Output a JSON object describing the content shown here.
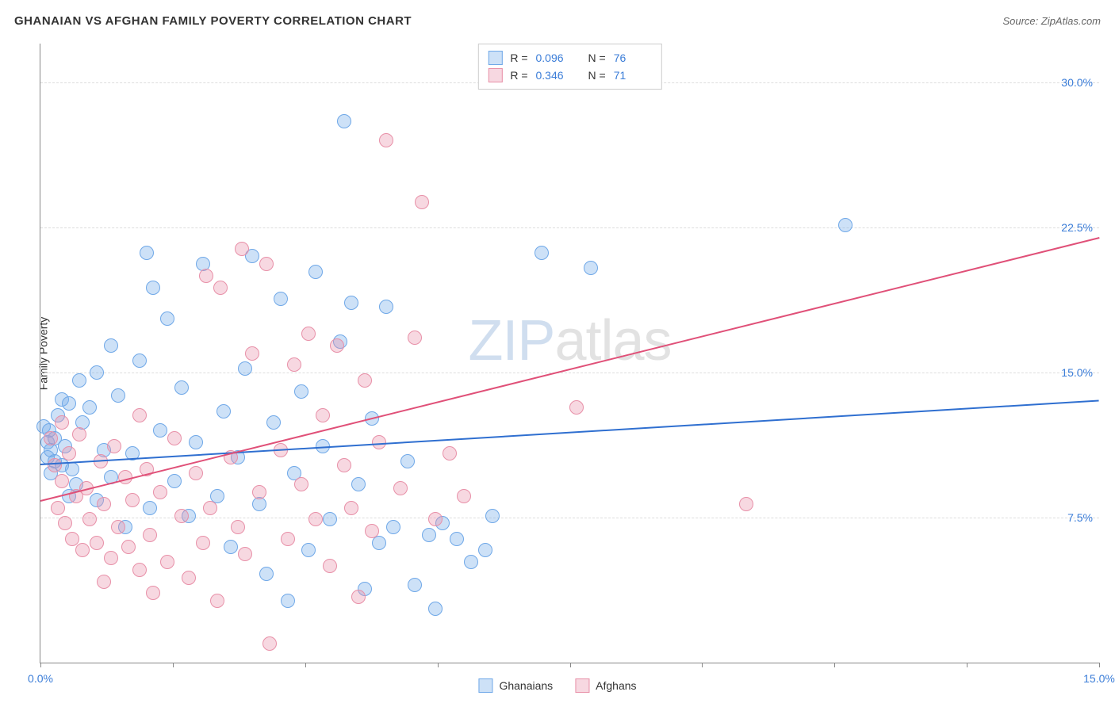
{
  "header": {
    "title": "GHANAIAN VS AFGHAN FAMILY POVERTY CORRELATION CHART",
    "source": "Source: ZipAtlas.com"
  },
  "ylabel": "Family Poverty",
  "watermark": {
    "part1": "ZIP",
    "part2": "atlas"
  },
  "chart": {
    "type": "scatter",
    "background_color": "#ffffff",
    "grid_color": "#dddddd",
    "axis_color": "#888888",
    "label_color": "#3b7dd8",
    "label_fontsize": 14,
    "xlim": [
      0.0,
      15.0
    ],
    "ylim": [
      0.0,
      32.0
    ],
    "xticks": [
      0.0,
      1.875,
      3.75,
      5.625,
      7.5,
      9.375,
      11.25,
      13.125,
      15.0
    ],
    "xtick_labels": {
      "0": "0.0%",
      "8": "15.0%"
    },
    "yticks": [
      7.5,
      15.0,
      22.5,
      30.0
    ],
    "ytick_labels": [
      "7.5%",
      "15.0%",
      "22.5%",
      "30.0%"
    ],
    "marker_radius": 9,
    "marker_border_width": 1.5,
    "marker_fill_opacity": 0.35,
    "trend_line_width": 2,
    "series": [
      {
        "name": "Ghanaians",
        "color": "#6fa8e8",
        "fill": "rgba(111,168,232,0.35)",
        "R": "0.096",
        "N": "76",
        "trend": {
          "x1": 0.0,
          "y1": 10.3,
          "x2": 15.0,
          "y2": 13.6,
          "color": "#2f6fd0"
        },
        "points": [
          [
            0.05,
            12.2
          ],
          [
            0.1,
            11.4
          ],
          [
            0.1,
            10.6
          ],
          [
            0.12,
            12.0
          ],
          [
            0.15,
            11.0
          ],
          [
            0.15,
            9.8
          ],
          [
            0.2,
            10.4
          ],
          [
            0.2,
            11.6
          ],
          [
            0.25,
            12.8
          ],
          [
            0.3,
            10.2
          ],
          [
            0.35,
            11.2
          ],
          [
            0.4,
            13.4
          ],
          [
            0.45,
            10.0
          ],
          [
            0.5,
            9.2
          ],
          [
            0.55,
            14.6
          ],
          [
            0.6,
            12.4
          ],
          [
            0.7,
            13.2
          ],
          [
            0.8,
            8.4
          ],
          [
            0.9,
            11.0
          ],
          [
            1.0,
            9.6
          ],
          [
            1.1,
            13.8
          ],
          [
            1.2,
            7.0
          ],
          [
            1.3,
            10.8
          ],
          [
            1.4,
            15.6
          ],
          [
            1.5,
            21.2
          ],
          [
            1.6,
            19.4
          ],
          [
            1.55,
            8.0
          ],
          [
            1.7,
            12.0
          ],
          [
            1.8,
            17.8
          ],
          [
            1.9,
            9.4
          ],
          [
            2.0,
            14.2
          ],
          [
            2.1,
            7.6
          ],
          [
            2.2,
            11.4
          ],
          [
            2.3,
            20.6
          ],
          [
            2.5,
            8.6
          ],
          [
            2.6,
            13.0
          ],
          [
            2.7,
            6.0
          ],
          [
            2.8,
            10.6
          ],
          [
            2.9,
            15.2
          ],
          [
            3.0,
            21.0
          ],
          [
            3.1,
            8.2
          ],
          [
            3.2,
            4.6
          ],
          [
            3.3,
            12.4
          ],
          [
            3.4,
            18.8
          ],
          [
            3.5,
            3.2
          ],
          [
            3.6,
            9.8
          ],
          [
            3.7,
            14.0
          ],
          [
            3.8,
            5.8
          ],
          [
            3.9,
            20.2
          ],
          [
            4.0,
            11.2
          ],
          [
            4.1,
            7.4
          ],
          [
            4.25,
            16.6
          ],
          [
            4.3,
            28.0
          ],
          [
            4.4,
            18.6
          ],
          [
            4.5,
            9.2
          ],
          [
            4.6,
            3.8
          ],
          [
            4.7,
            12.6
          ],
          [
            4.9,
            18.4
          ],
          [
            5.0,
            7.0
          ],
          [
            5.2,
            10.4
          ],
          [
            5.3,
            4.0
          ],
          [
            5.5,
            6.6
          ],
          [
            5.6,
            2.8
          ],
          [
            5.7,
            7.2
          ],
          [
            5.9,
            6.4
          ],
          [
            6.1,
            5.2
          ],
          [
            6.3,
            5.8
          ],
          [
            6.4,
            7.6
          ],
          [
            7.1,
            21.2
          ],
          [
            7.8,
            20.4
          ],
          [
            11.4,
            22.6
          ],
          [
            0.3,
            13.6
          ],
          [
            0.4,
            8.6
          ],
          [
            0.8,
            15.0
          ],
          [
            1.0,
            16.4
          ],
          [
            4.8,
            6.2
          ]
        ]
      },
      {
        "name": "Afghans",
        "color": "#e890a8",
        "fill": "rgba(232,144,168,0.35)",
        "R": "0.346",
        "N": "71",
        "trend": {
          "x1": 0.0,
          "y1": 8.4,
          "x2": 15.0,
          "y2": 22.0,
          "color": "#e05078"
        },
        "points": [
          [
            0.15,
            11.6
          ],
          [
            0.2,
            10.2
          ],
          [
            0.25,
            8.0
          ],
          [
            0.3,
            9.4
          ],
          [
            0.35,
            7.2
          ],
          [
            0.4,
            10.8
          ],
          [
            0.45,
            6.4
          ],
          [
            0.5,
            8.6
          ],
          [
            0.55,
            11.8
          ],
          [
            0.6,
            5.8
          ],
          [
            0.65,
            9.0
          ],
          [
            0.7,
            7.4
          ],
          [
            0.8,
            6.2
          ],
          [
            0.85,
            10.4
          ],
          [
            0.9,
            8.2
          ],
          [
            1.0,
            5.4
          ],
          [
            1.05,
            11.2
          ],
          [
            1.1,
            7.0
          ],
          [
            1.2,
            9.6
          ],
          [
            1.25,
            6.0
          ],
          [
            1.3,
            8.4
          ],
          [
            1.4,
            4.8
          ],
          [
            1.5,
            10.0
          ],
          [
            1.55,
            6.6
          ],
          [
            1.6,
            3.6
          ],
          [
            1.7,
            8.8
          ],
          [
            1.8,
            5.2
          ],
          [
            1.9,
            11.6
          ],
          [
            2.0,
            7.6
          ],
          [
            2.1,
            4.4
          ],
          [
            2.2,
            9.8
          ],
          [
            2.3,
            6.2
          ],
          [
            2.35,
            20.0
          ],
          [
            2.4,
            8.0
          ],
          [
            2.5,
            3.2
          ],
          [
            2.55,
            19.4
          ],
          [
            2.7,
            10.6
          ],
          [
            2.8,
            7.0
          ],
          [
            2.85,
            21.4
          ],
          [
            2.9,
            5.6
          ],
          [
            3.0,
            16.0
          ],
          [
            3.1,
            8.8
          ],
          [
            3.2,
            20.6
          ],
          [
            3.25,
            1.0
          ],
          [
            3.4,
            11.0
          ],
          [
            3.5,
            6.4
          ],
          [
            3.6,
            15.4
          ],
          [
            3.7,
            9.2
          ],
          [
            3.8,
            17.0
          ],
          [
            3.9,
            7.4
          ],
          [
            4.0,
            12.8
          ],
          [
            4.1,
            5.0
          ],
          [
            4.2,
            16.4
          ],
          [
            4.3,
            10.2
          ],
          [
            4.4,
            8.0
          ],
          [
            4.5,
            3.4
          ],
          [
            4.6,
            14.6
          ],
          [
            4.7,
            6.8
          ],
          [
            4.8,
            11.4
          ],
          [
            4.9,
            27.0
          ],
          [
            5.1,
            9.0
          ],
          [
            5.3,
            16.8
          ],
          [
            5.4,
            23.8
          ],
          [
            5.6,
            7.4
          ],
          [
            5.8,
            10.8
          ],
          [
            6.0,
            8.6
          ],
          [
            7.6,
            13.2
          ],
          [
            10.0,
            8.2
          ],
          [
            0.3,
            12.4
          ],
          [
            0.9,
            4.2
          ],
          [
            1.4,
            12.8
          ]
        ]
      }
    ],
    "bottom_legend": [
      {
        "label": "Ghanaians",
        "fill": "rgba(111,168,232,0.35)",
        "border": "#6fa8e8"
      },
      {
        "label": "Afghans",
        "fill": "rgba(232,144,168,0.35)",
        "border": "#e890a8"
      }
    ]
  }
}
